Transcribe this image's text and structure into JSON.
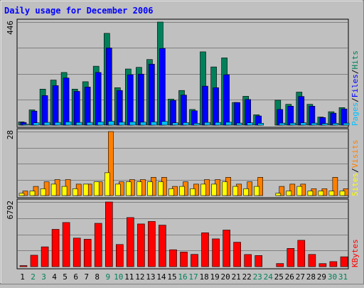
{
  "chart_data": {
    "type": "bar",
    "title": "Daily usage for December 2006",
    "days": [
      "1",
      "2",
      "3",
      "4",
      "5",
      "6",
      "7",
      "8",
      "9",
      "10",
      "11",
      "12",
      "13",
      "14",
      "15",
      "16",
      "17",
      "18",
      "19",
      "20",
      "21",
      "22",
      "23",
      "24",
      "25",
      "26",
      "27",
      "28",
      "29",
      "30",
      "31"
    ],
    "weekend_days": [
      "2",
      "3",
      "9",
      "10",
      "16",
      "17",
      "23",
      "24",
      "30",
      "31"
    ],
    "panels": [
      {
        "id": "hits-files-pages",
        "max_label": "446",
        "ylim": [
          0,
          446
        ],
        "labels": [
          "Pages",
          "/",
          "Files",
          "/",
          "Hits"
        ],
        "series": [
          {
            "name": "Hits",
            "color": "#00805a",
            "values": [
              14,
              66,
              156,
              195,
              228,
              156,
              188,
              255,
              397,
              162,
              243,
              250,
              284,
              446,
              113,
              150,
              68,
              317,
              252,
              291,
              98,
              125,
              45,
              0,
              108,
              90,
              143,
              90,
              35,
              58,
              76
            ]
          },
          {
            "name": "Files",
            "color": "#0000ff",
            "values": [
              12,
              61,
              128,
              171,
              204,
              146,
              165,
              228,
              334,
              150,
              218,
              221,
              264,
              332,
              107,
              130,
              62,
              169,
              162,
              218,
              98,
              111,
              40,
              0,
              68,
              82,
              124,
              82,
              33,
              52,
              70
            ]
          },
          {
            "name": "Pages",
            "color": "#00c0ff",
            "values": [
              4,
              10,
              12,
              12,
              14,
              12,
              12,
              14,
              17,
              13,
              14,
              13,
              14,
              16,
              10,
              11,
              8,
              12,
              12,
              13,
              9,
              10,
              8,
              0,
              9,
              9,
              10,
              9,
              7,
              8,
              9
            ]
          }
        ]
      },
      {
        "id": "visits-sites",
        "max_label": "28",
        "ylim": [
          0,
          28
        ],
        "labels": [
          "Sites",
          "/",
          "Visits"
        ],
        "series": [
          {
            "name": "Visits",
            "color": "#ff8000",
            "values": [
              2,
              4,
              6,
              7,
              7,
              5,
              5,
              6,
              28,
              6,
              7,
              7,
              8,
              8,
              4,
              6,
              5,
              7,
              7,
              8,
              5,
              6,
              8,
              0,
              4,
              5,
              5,
              3,
              3,
              8,
              3
            ]
          },
          {
            "name": "Sites",
            "color": "#ffff00",
            "values": [
              1,
              2,
              3,
              5,
              4,
              3,
              5,
              6,
              10,
              5,
              6,
              6,
              6,
              6,
              3,
              4,
              3,
              5,
              5,
              6,
              4,
              3,
              4,
              0,
              1,
              2,
              4,
              2,
              2,
              2,
              2
            ]
          }
        ]
      },
      {
        "id": "kbytes",
        "max_label": "6792",
        "ylim": [
          0,
          6792
        ],
        "labels": [
          "KBytes"
        ],
        "series": [
          {
            "name": "KBytes",
            "color": "#ff0000",
            "values": [
              114,
              1198,
              2084,
              3919,
              4633,
              3003,
              2880,
              4554,
              6792,
              2332,
              5160,
              4482,
              4747,
              4357,
              1773,
              1537,
              1289,
              3560,
              2916,
              3845,
              2566,
              1278,
              1173,
              0,
              332,
              1919,
              2766,
              1287,
              320,
              532,
              1037
            ]
          }
        ]
      }
    ],
    "grid": true,
    "bar_frame_color": "#000000"
  },
  "colors": {
    "background": "#c0c0c0",
    "title": "#0000ff",
    "grid": "#808080",
    "day_label": "#000000",
    "weekend_label": "#00805a",
    "label_slash": "#000000"
  }
}
